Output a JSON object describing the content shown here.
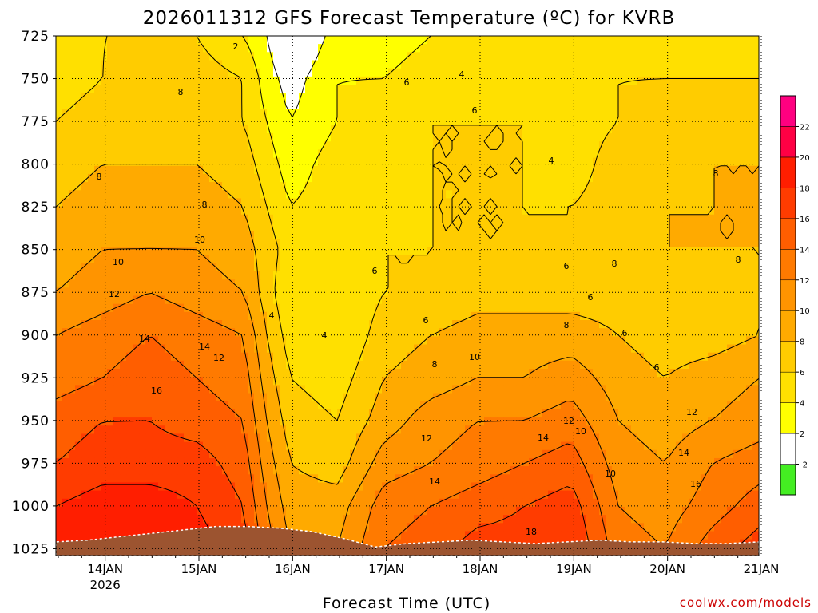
{
  "chart_data": {
    "type": "heatmap",
    "title": "2026011312 GFS Forecast Temperature (ºC) for KVRB",
    "xlabel": "Forecast Time (UTC)",
    "ylabel": "",
    "y_axis": {
      "ticks": [
        "725",
        "750",
        "775",
        "800",
        "825",
        "850",
        "875",
        "900",
        "925",
        "950",
        "975",
        "1000",
        "1025"
      ],
      "values": [
        725,
        750,
        775,
        800,
        825,
        850,
        875,
        900,
        925,
        950,
        975,
        1000,
        1025
      ],
      "inverted": true
    },
    "x_axis": {
      "ticks": [
        "14JAN",
        "15JAN",
        "16JAN",
        "17JAN",
        "18JAN",
        "19JAN",
        "20JAN",
        "21JAN"
      ],
      "year_label": "2026",
      "range": [
        "2026-01-13T12",
        "2026-01-21T00"
      ]
    },
    "colorbar": {
      "labels": [
        "-2",
        "2",
        "4",
        "6",
        "8",
        "10",
        "12",
        "14",
        "16",
        "18",
        "20",
        "22"
      ],
      "levels": [
        -4,
        -2,
        2,
        4,
        6,
        8,
        10,
        12,
        14,
        16,
        18,
        20,
        22,
        24
      ],
      "colors": [
        "#44ee22",
        "#ffffff",
        "#ffff00",
        "#ffe000",
        "#ffcc00",
        "#ffaa00",
        "#ff9400",
        "#ff7a00",
        "#ff5e00",
        "#ff3c00",
        "#ff1e00",
        "#ff0044",
        "#ff0080"
      ]
    },
    "grid": true,
    "times": [
      "2026-01-13T12",
      "2026-01-14T00",
      "2026-01-14T12",
      "2026-01-15T00",
      "2026-01-15T12",
      "2026-01-15T18",
      "2026-01-16T00",
      "2026-01-16T12",
      "2026-01-17T00",
      "2026-01-17T12",
      "2026-01-18T00",
      "2026-01-18T12",
      "2026-01-19T00",
      "2026-01-19T12",
      "2026-01-20T00",
      "2026-01-20T12",
      "2026-01-21T00"
    ],
    "levels_hpa": [
      725,
      750,
      775,
      800,
      825,
      850,
      875,
      900,
      925,
      950,
      975,
      1000,
      1025
    ],
    "temperature_c": [
      [
        5,
        6,
        6,
        6,
        4,
        2,
        -1,
        3,
        3,
        4,
        5,
        5,
        4,
        5,
        5,
        5,
        5
      ],
      [
        5,
        6,
        7,
        7,
        6,
        3,
        1,
        4,
        4,
        5,
        5,
        5,
        5,
        6,
        6,
        6,
        6
      ],
      [
        6,
        7,
        7,
        7,
        6,
        4,
        2,
        4,
        5,
        6,
        6,
        6,
        5,
        6,
        7,
        7,
        7
      ],
      [
        7,
        8,
        8,
        8,
        7,
        5,
        3,
        5,
        5,
        6,
        6,
        6,
        5,
        7,
        7,
        8,
        8
      ],
      [
        8,
        9,
        9,
        9,
        8,
        6,
        4,
        5,
        5,
        6,
        6,
        6,
        6,
        7,
        8,
        8,
        8
      ],
      [
        9,
        10,
        10,
        10,
        9,
        7,
        5,
        5,
        6,
        6,
        6,
        6,
        6,
        7,
        8,
        8,
        8
      ],
      [
        10,
        11,
        12,
        11,
        10,
        7,
        4,
        4,
        6,
        6,
        7,
        7,
        7,
        7,
        7,
        7,
        8
      ],
      [
        12,
        13,
        14,
        13,
        12,
        8,
        5,
        4,
        7,
        8,
        9,
        9,
        9,
        8,
        7,
        7,
        8
      ],
      [
        13,
        14,
        15,
        14,
        13,
        9,
        6,
        5,
        8,
        9,
        10,
        10,
        11,
        9,
        8,
        9,
        10
      ],
      [
        15,
        16,
        16,
        15,
        14,
        10,
        7,
        6,
        9,
        11,
        12,
        12,
        13,
        10,
        9,
        10,
        11
      ],
      [
        16,
        17,
        17,
        17,
        15,
        11,
        8,
        7,
        11,
        12,
        13,
        14,
        15,
        11,
        10,
        12,
        13
      ],
      [
        18,
        19,
        19,
        18,
        16,
        12,
        9,
        9,
        13,
        14,
        15,
        16,
        17,
        12,
        11,
        13,
        15
      ],
      [
        19,
        20,
        20,
        19,
        17,
        13,
        10,
        10,
        14,
        15,
        17,
        17,
        18,
        13,
        12,
        15,
        17
      ]
    ],
    "contour_labels": [
      "2",
      "4",
      "4",
      "4",
      "4",
      "6",
      "6",
      "6",
      "6",
      "6",
      "6",
      "6",
      "6",
      "8",
      "8",
      "8",
      "8",
      "8",
      "8",
      "8",
      "8",
      "10",
      "10",
      "10",
      "10",
      "10",
      "12",
      "12",
      "12",
      "12",
      "12",
      "14",
      "14",
      "14",
      "14",
      "14",
      "16",
      "16",
      "18"
    ]
  },
  "credit": "coolwx.com/models"
}
